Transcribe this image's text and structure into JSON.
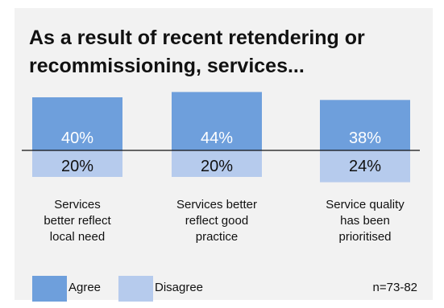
{
  "chart_data": {
    "type": "bar",
    "title_lines": [
      "As a result of recent retendering or",
      "recommissioning, services..."
    ],
    "categories": [
      [
        "Services",
        "better reflect",
        "local need"
      ],
      [
        "Services better",
        "reflect good",
        "practice"
      ],
      [
        "Service quality",
        "has been",
        "prioritised"
      ]
    ],
    "series": [
      {
        "name": "Agree",
        "values": [
          40,
          44,
          38
        ],
        "labels": [
          "40%",
          "44%",
          "38%"
        ],
        "color": "#6e9fdc",
        "label_color": "#ffffff"
      },
      {
        "name": "Disagree",
        "values": [
          20,
          20,
          24
        ],
        "labels": [
          "20%",
          "20%",
          "24%"
        ],
        "color": "#b6cbed",
        "label_color": "#111111"
      }
    ],
    "diverging": true,
    "legend_position": "bottom-left",
    "note": "n=73-82"
  }
}
